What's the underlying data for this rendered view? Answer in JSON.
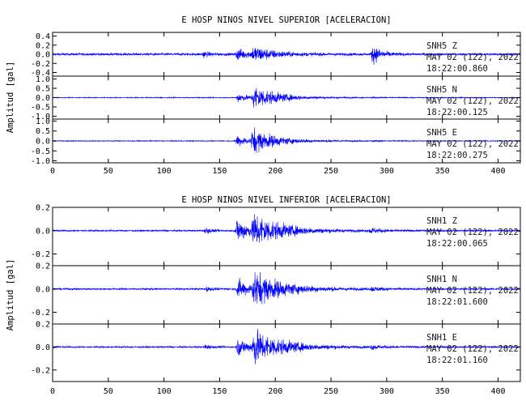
{
  "chart_data": [
    {
      "type": "line",
      "title": "E HOSP NINOS NIVEL SUPERIOR [ACELERACION]",
      "ylabel": "Amplitud [gal]",
      "xlim": [
        0,
        420
      ],
      "x_ticks": [
        "0",
        "50",
        "100",
        "150",
        "200",
        "250",
        "300",
        "350",
        "400"
      ],
      "line_color": "#0000ff",
      "grid": false,
      "traces": [
        {
          "station": "SNH5",
          "component": "Z",
          "date": "MAY 02 (122), 2022",
          "time": "18:22:00.860",
          "ylim": [
            -0.48,
            0.48
          ],
          "y_ticks": [
            "-0.4",
            "-0.2",
            "0.0",
            "0.2",
            "0.4"
          ],
          "noise": 0.045,
          "events": [
            {
              "t": 135,
              "amp": 0.12,
              "dur": 5
            },
            {
              "t": 165,
              "amp": 0.22,
              "dur": 12
            },
            {
              "t": 180,
              "amp": 0.26,
              "dur": 20
            },
            {
              "t": 287,
              "amp": 0.36,
              "dur": 8
            }
          ]
        },
        {
          "station": "SNH5",
          "component": "N",
          "date": "MAY 02 (122), 2022",
          "time": "18:22:00.125",
          "ylim": [
            -1.15,
            1.15
          ],
          "y_ticks": [
            "-1.0",
            "-0.5",
            "0.0",
            "0.5",
            "1.0"
          ],
          "noise": 0.04,
          "events": [
            {
              "t": 166,
              "amp": 0.45,
              "dur": 10
            },
            {
              "t": 180,
              "amp": 1.1,
              "dur": 22
            },
            {
              "t": 287,
              "amp": 0.08,
              "dur": 6
            }
          ]
        },
        {
          "station": "SNH5",
          "component": "E",
          "date": "MAY 02 (122), 2022",
          "time": "18:22:00.275",
          "ylim": [
            -1.1,
            1.1
          ],
          "y_ticks": [
            "-1.0",
            "-0.5",
            "0.0",
            "0.5",
            "1.0"
          ],
          "noise": 0.04,
          "events": [
            {
              "t": 165,
              "amp": 0.55,
              "dur": 10
            },
            {
              "t": 179,
              "amp": 1.05,
              "dur": 22
            },
            {
              "t": 287,
              "amp": 0.06,
              "dur": 6
            }
          ]
        }
      ]
    },
    {
      "type": "line",
      "title": "E HOSP NINOS NIVEL INFERIOR [ACELERACION]",
      "ylabel": "Amplitud [gal]",
      "xlim": [
        0,
        420
      ],
      "x_ticks": [
        "0",
        "50",
        "100",
        "150",
        "200",
        "250",
        "300",
        "350",
        "400"
      ],
      "line_color": "#0000ff",
      "grid": false,
      "traces": [
        {
          "station": "SNH1",
          "component": "Z",
          "date": "MAY 02 (122), 2022",
          "time": "18:22:00.065",
          "ylim": [
            -0.3,
            0.2
          ],
          "y_ticks": [
            "-0.2",
            "0.0",
            "0.2"
          ],
          "noise": 0.012,
          "events": [
            {
              "t": 137,
              "amp": 0.05,
              "dur": 5
            },
            {
              "t": 165,
              "amp": 0.18,
              "dur": 14
            },
            {
              "t": 180,
              "amp": 0.22,
              "dur": 28
            },
            {
              "t": 285,
              "amp": 0.04,
              "dur": 10
            }
          ]
        },
        {
          "station": "SNH1",
          "component": "N",
          "date": "MAY 02 (122), 2022",
          "time": "18:22:01.600",
          "ylim": [
            -0.3,
            0.2
          ],
          "y_ticks": [
            "-0.2",
            "0.0",
            "0.2"
          ],
          "noise": 0.012,
          "events": [
            {
              "t": 138,
              "amp": 0.04,
              "dur": 5
            },
            {
              "t": 166,
              "amp": 0.15,
              "dur": 12
            },
            {
              "t": 180,
              "amp": 0.24,
              "dur": 28
            },
            {
              "t": 286,
              "amp": 0.03,
              "dur": 10
            }
          ]
        },
        {
          "station": "SNH1",
          "component": "E",
          "date": "MAY 02 (122), 2022",
          "time": "18:22:01.160",
          "ylim": [
            -0.3,
            0.2
          ],
          "y_ticks": [
            "-0.2",
            "0.0",
            "0.2"
          ],
          "noise": 0.012,
          "events": [
            {
              "t": 137,
              "amp": 0.04,
              "dur": 5
            },
            {
              "t": 166,
              "amp": 0.14,
              "dur": 12
            },
            {
              "t": 180,
              "amp": 0.24,
              "dur": 28
            },
            {
              "t": 286,
              "amp": 0.03,
              "dur": 10
            }
          ]
        }
      ]
    }
  ]
}
